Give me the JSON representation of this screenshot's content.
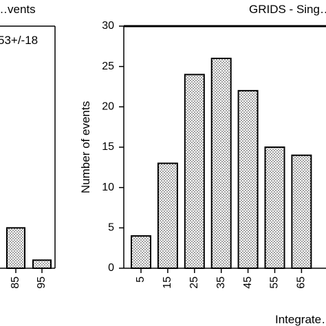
{
  "chart_data": [
    {
      "type": "bar",
      "title": "…vents",
      "annotation": "53+/-18",
      "xlabel": "",
      "ylabel": "",
      "categories": [
        "…",
        "85",
        "95"
      ],
      "values": [
        null,
        5,
        1
      ],
      "ylim": [
        0,
        30
      ],
      "bar_pattern": "dotted"
    },
    {
      "type": "bar",
      "title": "GRIDS - Sing…",
      "xlabel": "Integrate…",
      "ylabel": "Number of events",
      "categories": [
        "5",
        "15",
        "25",
        "35",
        "45",
        "55",
        "65"
      ],
      "values": [
        4,
        13,
        24,
        26,
        22,
        15,
        14
      ],
      "ylim": [
        0,
        30
      ],
      "yticks": [
        0,
        5,
        10,
        15,
        20,
        25,
        30
      ],
      "bar_pattern": "dotted",
      "grid": false
    }
  ]
}
